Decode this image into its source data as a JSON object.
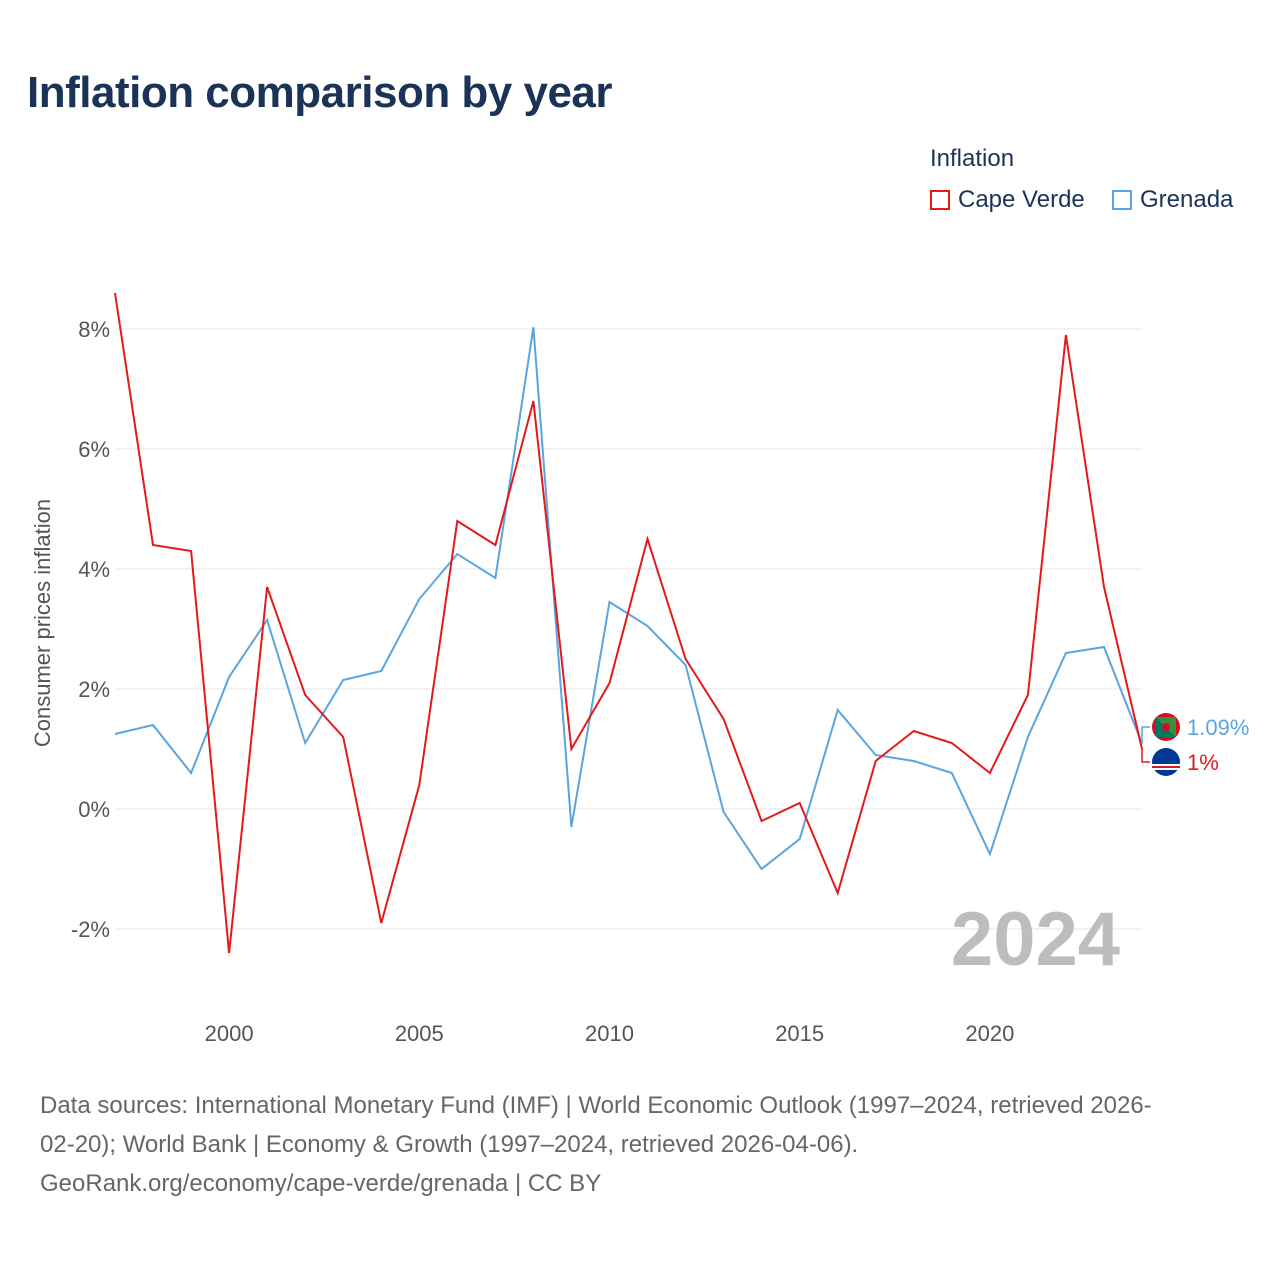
{
  "title": "Inflation comparison by year",
  "legend": {
    "title": "Inflation",
    "items": [
      {
        "label": "Cape Verde",
        "color": "#e31a1c"
      },
      {
        "label": "Grenada",
        "color": "#5aa5e0"
      }
    ]
  },
  "chart_data": {
    "type": "line",
    "title": "Inflation comparison by year",
    "xlabel": "",
    "ylabel": "Consumer prices inflation",
    "xlim": [
      1997,
      2024
    ],
    "ylim": [
      -2.6,
      8.7
    ],
    "x_ticks": [
      2000,
      2005,
      2010,
      2015,
      2020
    ],
    "y_ticks": [
      -2,
      0,
      2,
      4,
      6,
      8
    ],
    "y_tick_labels": [
      "-2%",
      "0%",
      "2%",
      "4%",
      "6%",
      "8%"
    ],
    "grid": true,
    "year_stamp": "2024",
    "x": [
      1997,
      1998,
      1999,
      2000,
      2001,
      2002,
      2003,
      2004,
      2005,
      2006,
      2007,
      2008,
      2009,
      2010,
      2011,
      2012,
      2013,
      2014,
      2015,
      2016,
      2017,
      2018,
      2019,
      2020,
      2021,
      2022,
      2023,
      2024
    ],
    "series": [
      {
        "name": "Cape Verde",
        "color": "#e31a1c",
        "end_label": "1%",
        "flag": "Cape Verde flag",
        "values": [
          8.6,
          4.4,
          4.3,
          -2.4,
          3.7,
          1.9,
          1.2,
          -1.9,
          0.4,
          4.8,
          4.4,
          6.8,
          1.0,
          2.1,
          4.5,
          2.5,
          1.5,
          -0.2,
          0.1,
          -1.4,
          0.8,
          1.3,
          1.1,
          0.6,
          1.9,
          7.9,
          3.7,
          1.0
        ]
      },
      {
        "name": "Grenada",
        "color": "#5aa5e0",
        "end_label": "1.09%",
        "flag": "Grenada flag",
        "values": [
          1.25,
          1.4,
          0.6,
          2.2,
          3.15,
          1.1,
          2.15,
          2.3,
          3.5,
          4.25,
          3.85,
          8.03,
          -0.3,
          3.45,
          3.05,
          2.4,
          -0.05,
          -1.0,
          -0.5,
          1.65,
          0.9,
          0.8,
          0.6,
          -0.75,
          1.2,
          2.6,
          2.7,
          1.09
        ]
      }
    ]
  },
  "sources": {
    "line1": "Data sources: International Monetary Fund (IMF) | World Economic Outlook (1997–2024, retrieved 2026-",
    "line2": "02-20); World Bank | Economy & Growth (1997–2024, retrieved 2026-04-06).",
    "line3": "GeoRank.org/economy/cape-verde/grenada | CC BY"
  }
}
